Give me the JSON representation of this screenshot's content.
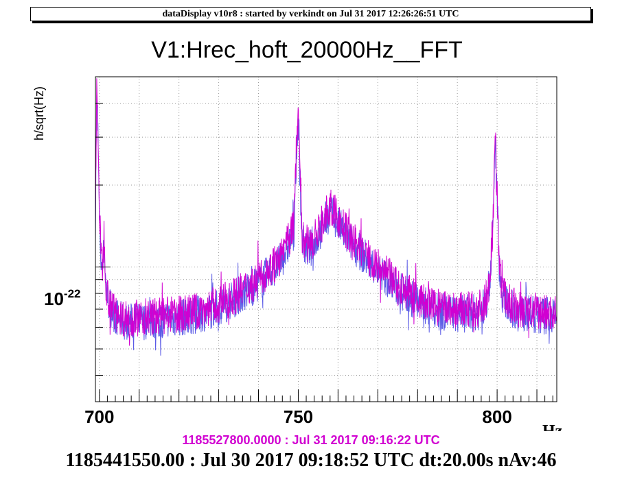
{
  "banner": "dataDisplay v10r8 : started by verkindt on Jul 31 2017 12:26:26:51 UTC",
  "footer_ref": "1185527800.0000 : Jul 31 2017 09:16:22 UTC",
  "footer_main": "1185441550.00 : Jul 30 2017 09:18:52 UTC dt:20.00s nAv:46",
  "colors": {
    "series_current": "#d100d1",
    "series_reference": "#5a5ae6",
    "footer_ref": "#d100d1"
  },
  "chart_data": {
    "type": "line",
    "title": "V1:Hrec_hoft_20000Hz__FFT",
    "xlabel": "Hz",
    "ylabel": "h/sqrt(Hz)",
    "yscale": "log",
    "xlim": [
      699,
      815
    ],
    "ylim": [
      3.2e-23,
      5e-22
    ],
    "xticks": [
      700,
      750,
      800
    ],
    "xtick_labels": [
      "700",
      "750",
      "800"
    ],
    "ytick_label": {
      "value": 1e-22,
      "base": "10",
      "exp": "-22"
    },
    "grid": true,
    "series": [
      {
        "color": "#d100d1",
        "x": [
          699,
          699.3,
          699.6,
          700,
          700.4,
          700.8,
          701.2,
          701.6,
          702,
          703,
          704,
          706,
          710,
          715,
          720,
          725,
          730,
          735,
          740,
          742,
          745,
          747,
          748,
          749,
          749.5,
          750,
          750.5,
          751,
          752,
          754,
          755,
          756,
          757,
          758,
          759,
          760,
          762,
          765,
          768,
          770,
          773,
          776,
          780,
          785,
          790,
          795,
          797,
          798,
          799,
          799.5,
          800,
          800.5,
          801,
          802,
          803,
          805,
          808,
          812,
          815
        ],
        "y": [
          1.5e-22,
          4.5e-22,
          3.5e-22,
          1.6e-22,
          1.1e-22,
          1e-22,
          1.35e-22,
          9e-23,
          8e-23,
          7.2e-23,
          6.8e-23,
          6.5e-23,
          6.5e-23,
          6.6e-23,
          6.7e-23,
          6.9e-23,
          7.3e-23,
          8e-23,
          9e-23,
          9.6e-23,
          1.05e-22,
          1.2e-22,
          1.3e-22,
          1.5e-22,
          2.8e-22,
          3.9e-22,
          2.2e-22,
          1.3e-22,
          1.2e-22,
          1.25e-22,
          1.35e-22,
          1.45e-22,
          1.55e-22,
          1.65e-22,
          1.6e-22,
          1.5e-22,
          1.35e-22,
          1.2e-22,
          1.08e-22,
          1e-22,
          9.2e-23,
          8.4e-23,
          7.6e-23,
          7.1e-23,
          6.9e-23,
          7e-23,
          7.4e-23,
          8.8e-23,
          1.5e-22,
          3.2e-22,
          1.9e-22,
          1.1e-22,
          8.5e-23,
          7.8e-23,
          7.4e-23,
          7e-23,
          6.9e-23,
          6.8e-23,
          6.8e-23
        ]
      },
      {
        "color": "#5a5ae6",
        "x": [
          699,
          699.3,
          699.6,
          700,
          700.4,
          700.8,
          701.2,
          701.6,
          702,
          703,
          704,
          706,
          710,
          715,
          720,
          725,
          730,
          735,
          740,
          742,
          745,
          747,
          748,
          749,
          749.5,
          750,
          750.5,
          751,
          752,
          754,
          755,
          756,
          757,
          758,
          759,
          760,
          762,
          765,
          768,
          770,
          773,
          776,
          780,
          785,
          790,
          795,
          797,
          798,
          799,
          799.5,
          800,
          800.5,
          801,
          802,
          803,
          805,
          808,
          812,
          815
        ],
        "y": [
          1.45e-22,
          4e-22,
          3.2e-22,
          1.5e-22,
          1.05e-22,
          9.6e-23,
          1.25e-22,
          8.6e-23,
          7.7e-23,
          7e-23,
          6.6e-23,
          6.3e-23,
          6.3e-23,
          6.4e-23,
          6.5e-23,
          6.7e-23,
          7.1e-23,
          7.8e-23,
          8.7e-23,
          9.3e-23,
          1.02e-22,
          1.15e-22,
          1.25e-22,
          1.4e-22,
          2.5e-22,
          3.5e-22,
          2e-22,
          1.25e-22,
          1.15e-22,
          1.2e-22,
          1.3e-22,
          1.4e-22,
          1.5e-22,
          1.58e-22,
          1.52e-22,
          1.44e-22,
          1.3e-22,
          1.16e-22,
          1.04e-22,
          9.7e-23,
          8.9e-23,
          8.1e-23,
          7.4e-23,
          6.9e-23,
          6.7e-23,
          6.8e-23,
          7.2e-23,
          8.4e-23,
          1.4e-22,
          2.9e-22,
          1.8e-22,
          1.05e-22,
          8.2e-23,
          7.5e-23,
          7.2e-23,
          6.8e-23,
          6.7e-23,
          6.6e-23,
          6.6e-23
        ]
      }
    ]
  }
}
